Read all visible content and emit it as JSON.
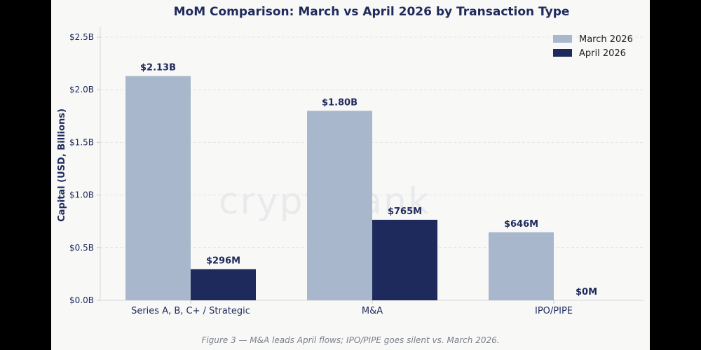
{
  "chart_data": {
    "type": "bar",
    "title": "MoM Comparison: March vs April 2026 by Transaction Type",
    "ylabel": "Capital (USD, Billions)",
    "xlabel": "",
    "categories": [
      "Series A, B, C+ / Strategic",
      "M&A",
      "IPO/PIPE"
    ],
    "series": [
      {
        "name": "March 2026",
        "values": [
          2.13,
          1.8,
          0.646
        ],
        "labels": [
          "$2.13B",
          "$1.80B",
          "$646M"
        ],
        "color": "#a8b7cc"
      },
      {
        "name": "April 2026",
        "values": [
          0.296,
          0.765,
          0.0
        ],
        "labels": [
          "$296M",
          "$765M",
          "$0M"
        ],
        "color": "#1f2a5c"
      }
    ],
    "ylim": [
      0,
      2.6
    ],
    "yticks": [
      0,
      0.5,
      1.0,
      1.5,
      2.0,
      2.5
    ],
    "ytick_labels": [
      "$0.0B",
      "$0.5B",
      "$1.0B",
      "$1.5B",
      "$2.0B",
      "$2.5B"
    ],
    "grid": "horizontal dashed",
    "legend_position": "top-right"
  },
  "caption": "Figure 3 — M&A leads April flows; IPO/PIPE goes silent vs. March 2026.",
  "watermark": "cryptorank"
}
